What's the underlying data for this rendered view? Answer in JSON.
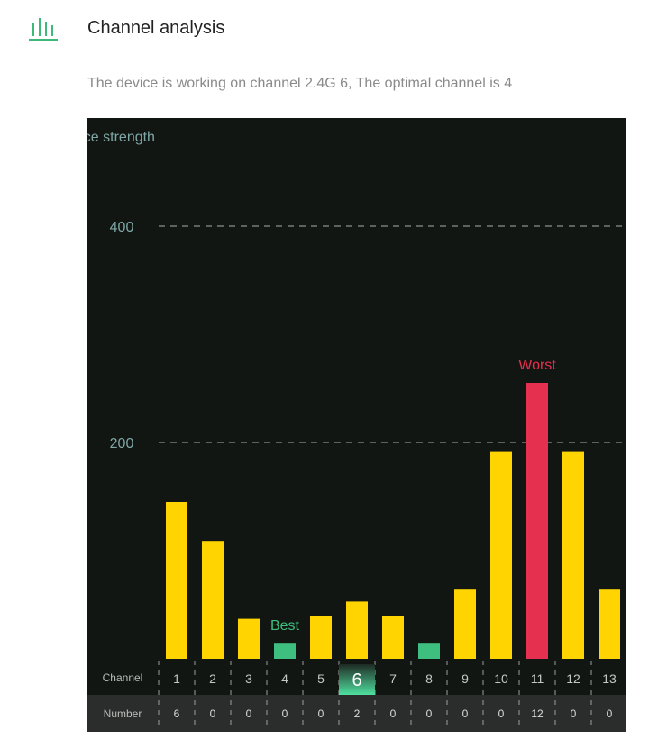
{
  "header": {
    "title": "Channel analysis",
    "icon": "signal-bars-icon"
  },
  "subtitle": "The device is working on channel 2.4G 6, The optimal channel is 4",
  "colors": {
    "accent": "#3fb97a",
    "bar": "#ffd400",
    "best": "#3fbf7f",
    "worst": "#e6304f",
    "axis_text": "#7fa7a5",
    "panel_bg": "#121613"
  },
  "chart_data": {
    "type": "bar",
    "ylabel": "ence strength",
    "ylim": [
      0,
      500
    ],
    "yticks": [
      "400",
      "200"
    ],
    "ytick_values": [
      400,
      200
    ],
    "grid": "dashed",
    "row_labels": {
      "channel": "Channel",
      "number": "Number"
    },
    "categories": [
      "1",
      "2",
      "3",
      "4",
      "5",
      "6",
      "7",
      "8",
      "9",
      "10",
      "11",
      "12",
      "13"
    ],
    "values": [
      145,
      109,
      37,
      14,
      40,
      53,
      40,
      14,
      64,
      192,
      255,
      192,
      64
    ],
    "numbers": [
      "6",
      "0",
      "0",
      "0",
      "0",
      "2",
      "0",
      "0",
      "0",
      "0",
      "12",
      "0",
      "0"
    ],
    "current_channel": "6",
    "best": {
      "channel": "4",
      "label": "Best"
    },
    "worst": {
      "channel": "11",
      "label": "Worst"
    }
  }
}
